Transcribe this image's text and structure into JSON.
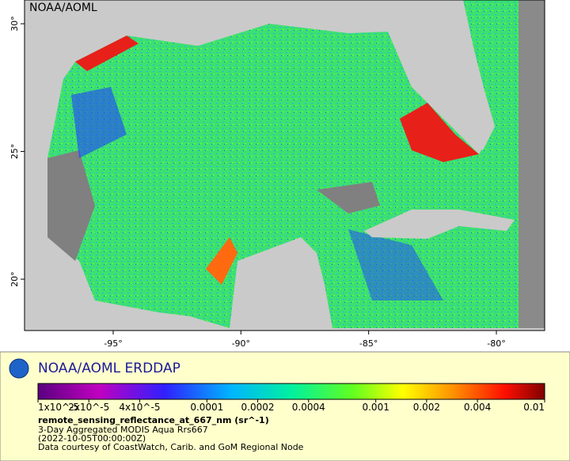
{
  "map": {
    "watermark": "NOAA/AOML",
    "xlim": [
      -98.47,
      -78.11
    ],
    "ylim": [
      17.99,
      30.93
    ],
    "xticks": [
      {
        "value": -95,
        "label": "-95°"
      },
      {
        "value": -90,
        "label": "-90°"
      },
      {
        "value": -85,
        "label": "-85°"
      },
      {
        "value": -80,
        "label": "-80°"
      }
    ],
    "yticks": [
      {
        "value": 20,
        "label": "20°"
      },
      {
        "value": 25,
        "label": "25°"
      },
      {
        "value": 30,
        "label": "30°"
      }
    ]
  },
  "legend": {
    "title": "NOAA/AOML ERDDAP",
    "colorbar": {
      "log": true,
      "lim": [
        1e-05,
        0.01
      ],
      "ticks": [
        {
          "value": 1e-05,
          "label": "1x10^-5"
        },
        {
          "value": 2e-05,
          "label": "2x10^-5"
        },
        {
          "value": 4e-05,
          "label": "4x10^-5"
        },
        {
          "value": 0.0001,
          "label": "0.0001"
        },
        {
          "value": 0.0002,
          "label": "0.0002"
        },
        {
          "value": 0.0004,
          "label": "0.0004"
        },
        {
          "value": 0.001,
          "label": "0.001"
        },
        {
          "value": 0.002,
          "label": "0.002"
        },
        {
          "value": 0.004,
          "label": "0.004"
        },
        {
          "value": 0.01,
          "label": "0.01"
        }
      ]
    },
    "variable": "remote_sensing_reflectance_at_667_nm (sr^-1)",
    "lines": [
      "3-Day Aggregated MODIS Aqua Rrs667",
      "(2022-10-05T00:00:00Z)",
      "Data courtesy of CoastWatch, Carib. and GoM Regional Node"
    ]
  }
}
